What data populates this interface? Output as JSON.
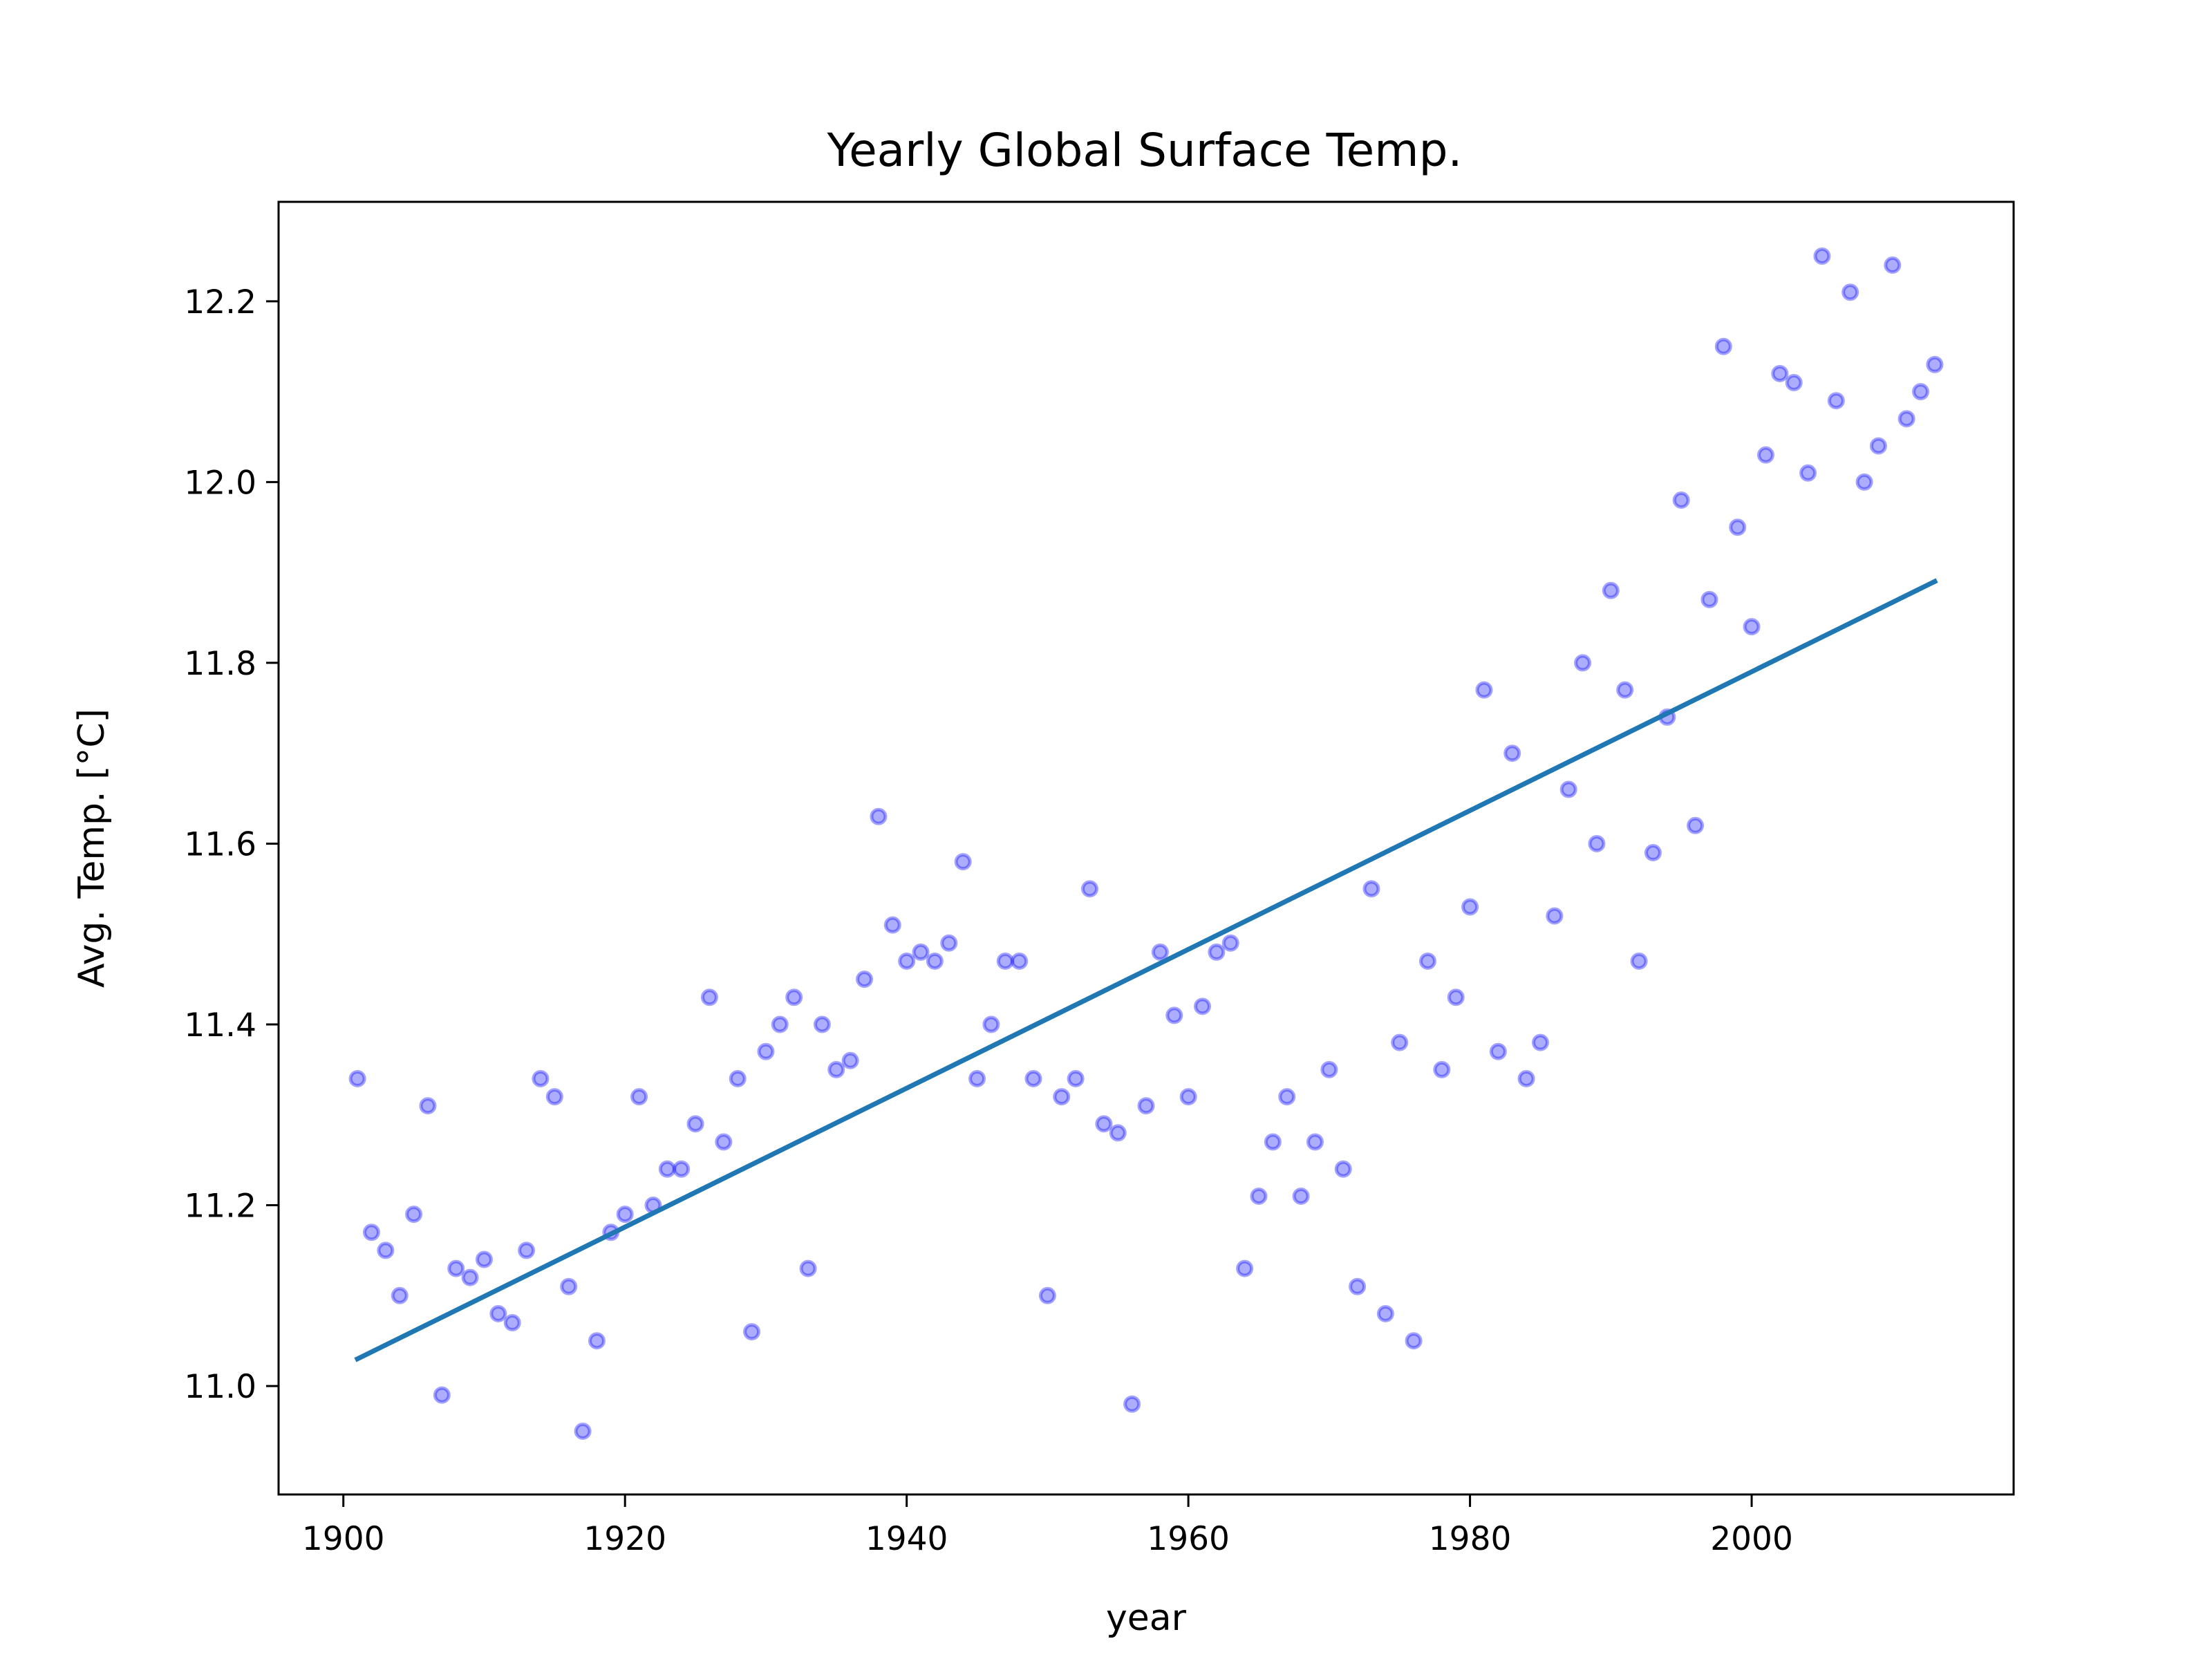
{
  "chart_data": {
    "type": "scatter",
    "title": "Yearly Global Surface Temp.",
    "xlabel": "year",
    "ylabel": "Avg. Temp. [°C]",
    "xlim": [
      1895.4,
      2018.6
    ],
    "ylim": [
      10.88,
      12.31
    ],
    "xticks": [
      1900,
      1920,
      1940,
      1960,
      1980,
      2000
    ],
    "xtick_labels": [
      "1900",
      "1920",
      "1940",
      "1960",
      "1980",
      "2000"
    ],
    "yticks": [
      11.0,
      11.2,
      11.4,
      11.6,
      11.8,
      12.0,
      12.2
    ],
    "ytick_labels": [
      "11.0",
      "11.2",
      "11.4",
      "11.6",
      "11.8",
      "12.0",
      "12.2"
    ],
    "grid": false,
    "legend": "none",
    "series": [
      {
        "type": "scatter",
        "color": "#0000ff",
        "x": [
          1901,
          1902,
          1903,
          1904,
          1905,
          1906,
          1907,
          1908,
          1909,
          1910,
          1911,
          1912,
          1913,
          1914,
          1915,
          1916,
          1917,
          1918,
          1919,
          1920,
          1921,
          1922,
          1923,
          1924,
          1925,
          1926,
          1927,
          1928,
          1929,
          1930,
          1931,
          1932,
          1933,
          1934,
          1935,
          1936,
          1937,
          1938,
          1939,
          1940,
          1941,
          1942,
          1943,
          1944,
          1945,
          1946,
          1947,
          1948,
          1949,
          1950,
          1951,
          1952,
          1953,
          1954,
          1955,
          1956,
          1957,
          1958,
          1959,
          1960,
          1961,
          1962,
          1963,
          1964,
          1965,
          1966,
          1967,
          1968,
          1969,
          1970,
          1971,
          1972,
          1973,
          1974,
          1975,
          1976,
          1977,
          1978,
          1979,
          1980,
          1981,
          1982,
          1983,
          1984,
          1985,
          1986,
          1987,
          1988,
          1989,
          1990,
          1991,
          1992,
          1993,
          1994,
          1995,
          1996,
          1997,
          1998,
          1999,
          2000,
          2001,
          2002,
          2003,
          2004,
          2005,
          2006,
          2007,
          2008,
          2009,
          2010,
          2011,
          2012,
          2013
        ],
        "y": [
          11.34,
          11.17,
          11.15,
          11.1,
          11.19,
          11.31,
          10.99,
          11.13,
          11.12,
          11.14,
          11.08,
          11.07,
          11.15,
          11.34,
          11.32,
          11.11,
          10.95,
          11.05,
          11.17,
          11.19,
          11.32,
          11.2,
          11.24,
          11.24,
          11.29,
          11.43,
          11.27,
          11.34,
          11.06,
          11.37,
          11.4,
          11.43,
          11.13,
          11.4,
          11.35,
          11.36,
          11.45,
          11.63,
          11.51,
          11.47,
          11.48,
          11.47,
          11.49,
          11.58,
          11.34,
          11.4,
          11.47,
          11.47,
          11.34,
          11.1,
          11.32,
          11.34,
          11.55,
          11.29,
          11.28,
          10.98,
          11.31,
          11.48,
          11.41,
          11.32,
          11.42,
          11.48,
          11.49,
          11.13,
          11.21,
          11.27,
          11.32,
          11.21,
          11.27,
          11.35,
          11.24,
          11.11,
          11.55,
          11.08,
          11.38,
          11.05,
          11.47,
          11.35,
          11.43,
          11.53,
          11.77,
          11.37,
          11.7,
          11.34,
          11.38,
          11.52,
          11.66,
          11.8,
          11.6,
          11.88,
          11.77,
          11.47,
          11.59,
          11.74,
          11.98,
          11.62,
          11.87,
          12.15,
          11.95,
          11.84,
          12.03,
          12.12,
          12.11,
          12.01,
          12.25,
          12.09,
          12.21,
          12.0,
          12.04,
          12.24,
          12.07,
          12.1,
          12.13
        ]
      },
      {
        "type": "line",
        "color": "#1f77b4",
        "x": [
          1901,
          2013
        ],
        "y": [
          11.03,
          11.89
        ]
      }
    ]
  }
}
